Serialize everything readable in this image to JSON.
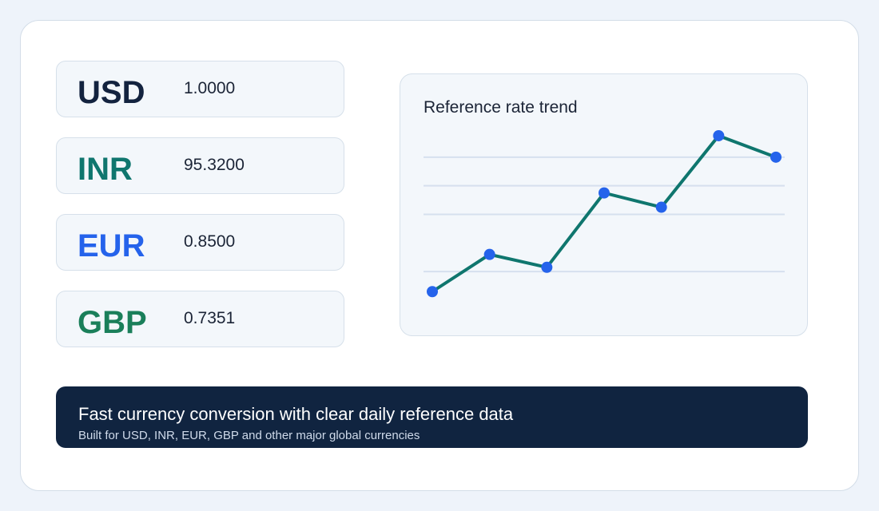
{
  "rates": [
    {
      "code": "USD",
      "value": "1.0000",
      "color": "#13233f"
    },
    {
      "code": "INR",
      "value": "95.3200",
      "color": "#0f766e"
    },
    {
      "code": "EUR",
      "value": "0.8500",
      "color": "#2563eb"
    },
    {
      "code": "GBP",
      "value": "0.7351",
      "color": "#1a7f5a"
    }
  ],
  "chart": {
    "title": "Reference rate trend",
    "line_color": "#0f766e",
    "point_color": "#2563eb",
    "grid_color": "#d6e0ee"
  },
  "chart_data": {
    "type": "line",
    "title": "Reference rate trend",
    "xlabel": "",
    "ylabel": "",
    "grid": true,
    "legend": "none",
    "x": [
      1,
      2,
      3,
      4,
      5,
      6,
      7
    ],
    "values": [
      0.3,
      1.6,
      1.15,
      3.75,
      3.25,
      5.75,
      5.0
    ],
    "ylim": [
      0,
      6
    ],
    "gridlines": [
      1,
      3,
      4,
      5
    ]
  },
  "banner": {
    "headline": "Fast currency conversion with clear daily reference data",
    "subtext": "Built for USD, INR, EUR, GBP and other major global currencies"
  }
}
